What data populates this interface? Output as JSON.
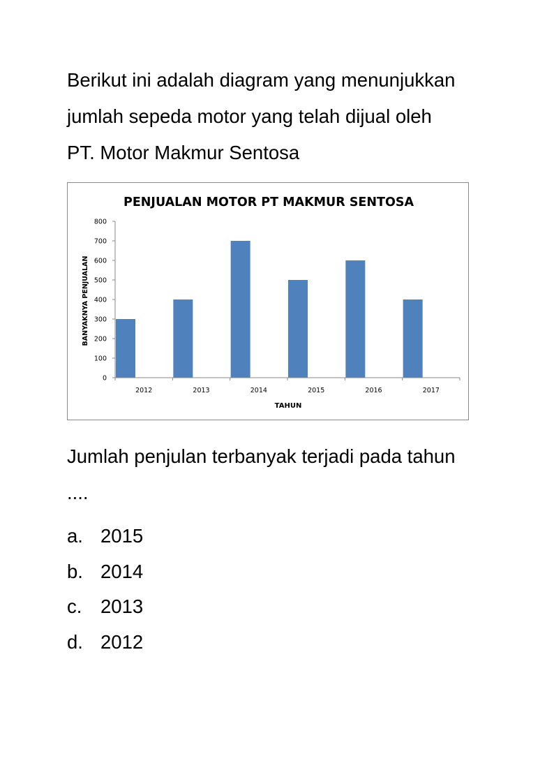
{
  "intro_lines": [
    "Berikut ini adalah diagram yang menunjukkan",
    "jumlah sepeda motor yang telah dijual oleh",
    "PT. Motor Makmur Sentosa"
  ],
  "question_lines": [
    "Jumlah penjulan terbanyak terjadi pada tahun",
    "...."
  ],
  "options": [
    {
      "letter": "a.",
      "text": "2015"
    },
    {
      "letter": "b.",
      "text": "2014"
    },
    {
      "letter": "c.",
      "text": "2013"
    },
    {
      "letter": "d.",
      "text": "2012"
    }
  ],
  "chart_data": {
    "type": "bar",
    "title": "PENJUALAN MOTOR PT MAKMUR SENTOSA",
    "xlabel": "TAHUN",
    "ylabel": "BANYAKNYA PENJUALAN",
    "categories": [
      "2012",
      "2013",
      "2014",
      "2015",
      "2016",
      "2017"
    ],
    "values": [
      300,
      400,
      700,
      500,
      600,
      400
    ],
    "ylim": [
      0,
      800
    ],
    "yticks": [
      0,
      100,
      200,
      300,
      400,
      500,
      600,
      700,
      800
    ],
    "grid": false,
    "legend": "none",
    "bar_color": "#4f81bd"
  }
}
